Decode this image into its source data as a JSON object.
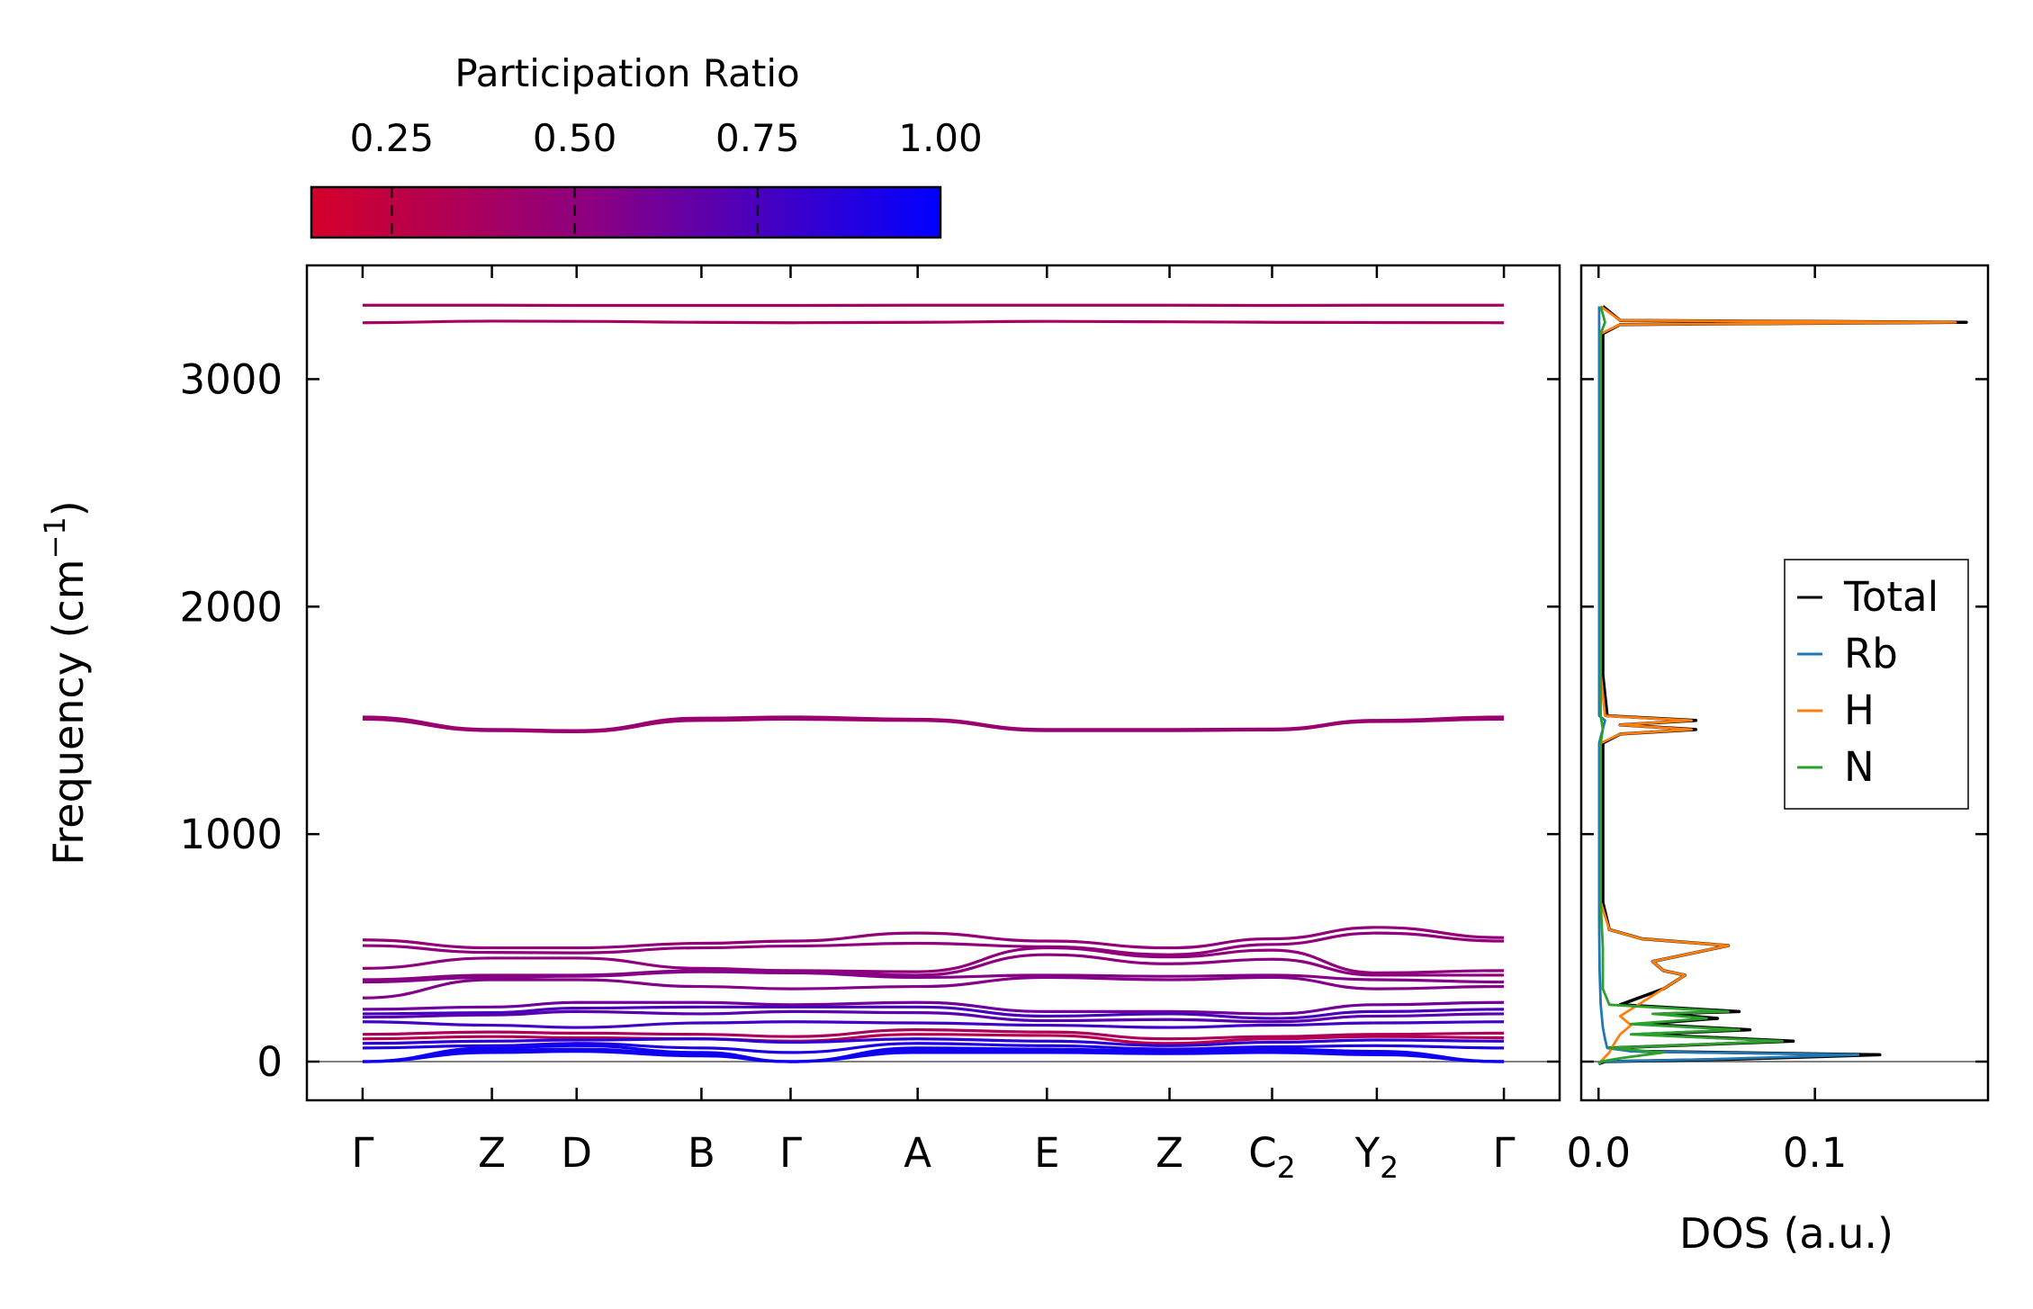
{
  "colors": {
    "low": "#d4002a",
    "mid": "#8b0082",
    "high": "#0000ff",
    "total": "#000000",
    "rb": "#1f77b4",
    "h": "#ff7f0e",
    "n": "#2ca02c",
    "zero_line": "#808080"
  },
  "colorbar": {
    "title": "Participation Ratio",
    "range": [
      0.14,
      1.0
    ],
    "ticks": [
      {
        "value": 0.25,
        "label": "0.25"
      },
      {
        "value": 0.5,
        "label": "0.50"
      },
      {
        "value": 0.75,
        "label": "0.75"
      },
      {
        "value": 1.0,
        "label": "1.00"
      }
    ]
  },
  "chart_data": [
    {
      "type": "line",
      "name": "phonon-band-structure",
      "ylabel": "Frequency (cm",
      "ylabel_sup": "−1",
      "ylabel_close": ")",
      "ylim": [
        -170,
        3500
      ],
      "yticks": [
        {
          "value": 0,
          "label": "0"
        },
        {
          "value": 1000,
          "label": "1000"
        },
        {
          "value": 2000,
          "label": "2000"
        },
        {
          "value": 3000,
          "label": "3000"
        }
      ],
      "kpath": [
        {
          "pos": 0.0,
          "label": "Γ",
          "sub": ""
        },
        {
          "pos": 0.58,
          "label": "Z",
          "sub": ""
        },
        {
          "pos": 0.96,
          "label": "D",
          "sub": ""
        },
        {
          "pos": 1.52,
          "label": "B",
          "sub": ""
        },
        {
          "pos": 1.92,
          "label": "Γ",
          "sub": ""
        },
        {
          "pos": 2.49,
          "label": "A",
          "sub": ""
        },
        {
          "pos": 3.07,
          "label": "E",
          "sub": ""
        },
        {
          "pos": 3.62,
          "label": "Z",
          "sub": ""
        },
        {
          "pos": 4.08,
          "label": "C",
          "sub": "2"
        },
        {
          "pos": 4.55,
          "label": "Y",
          "sub": "2"
        },
        {
          "pos": 5.12,
          "label": "Γ",
          "sub": ""
        }
      ],
      "xlim": [
        -0.25,
        5.37
      ],
      "series": [
        {
          "name": "band-1",
          "pr": 0.4,
          "values": [
            3325,
            3325,
            3324,
            3324,
            3324,
            3325,
            3325,
            3325,
            3324,
            3325,
            3325
          ]
        },
        {
          "name": "band-2",
          "pr": 0.38,
          "values": [
            3248,
            3255,
            3254,
            3250,
            3248,
            3250,
            3254,
            3252,
            3250,
            3249,
            3248
          ]
        },
        {
          "name": "band-3",
          "pr": 0.45,
          "values": [
            1515,
            1460,
            1455,
            1510,
            1515,
            1505,
            1460,
            1460,
            1462,
            1500,
            1515
          ]
        },
        {
          "name": "band-4",
          "pr": 0.45,
          "values": [
            1505,
            1455,
            1450,
            1500,
            1505,
            1500,
            1455,
            1455,
            1458,
            1495,
            1505
          ]
        },
        {
          "name": "band-5",
          "pr": 0.48,
          "values": [
            535,
            500,
            500,
            520,
            530,
            565,
            530,
            500,
            540,
            590,
            545
          ]
        },
        {
          "name": "band-6",
          "pr": 0.5,
          "values": [
            510,
            480,
            478,
            500,
            508,
            520,
            505,
            470,
            515,
            565,
            530
          ]
        },
        {
          "name": "band-7",
          "pr": 0.5,
          "values": [
            410,
            455,
            455,
            410,
            400,
            395,
            500,
            460,
            490,
            390,
            400
          ]
        },
        {
          "name": "band-8",
          "pr": 0.52,
          "values": [
            360,
            380,
            380,
            400,
            395,
            380,
            470,
            430,
            450,
            380,
            380
          ]
        },
        {
          "name": "band-9",
          "pr": 0.55,
          "values": [
            350,
            370,
            375,
            395,
            390,
            370,
            380,
            375,
            380,
            360,
            350
          ]
        },
        {
          "name": "band-10",
          "pr": 0.55,
          "values": [
            280,
            360,
            360,
            330,
            320,
            330,
            370,
            360,
            370,
            320,
            330
          ]
        },
        {
          "name": "band-11",
          "pr": 0.62,
          "values": [
            230,
            240,
            260,
            260,
            250,
            260,
            220,
            220,
            210,
            250,
            260
          ]
        },
        {
          "name": "band-12",
          "pr": 0.75,
          "values": [
            210,
            215,
            235,
            240,
            240,
            240,
            200,
            210,
            190,
            220,
            230
          ]
        },
        {
          "name": "band-13",
          "pr": 0.7,
          "values": [
            195,
            205,
            220,
            210,
            220,
            215,
            180,
            185,
            175,
            200,
            210
          ]
        },
        {
          "name": "band-14",
          "pr": 0.78,
          "values": [
            175,
            160,
            150,
            170,
            175,
            170,
            160,
            150,
            160,
            170,
            175
          ]
        },
        {
          "name": "band-15",
          "pr": 0.35,
          "values": [
            120,
            130,
            125,
            120,
            110,
            140,
            130,
            100,
            110,
            120,
            125
          ]
        },
        {
          "name": "band-16",
          "pr": 0.3,
          "values": [
            100,
            110,
            105,
            100,
            90,
            120,
            115,
            80,
            100,
            110,
            105
          ]
        },
        {
          "name": "band-17",
          "pr": 0.85,
          "values": [
            80,
            90,
            95,
            100,
            85,
            100,
            90,
            70,
            85,
            95,
            90
          ]
        },
        {
          "name": "band-18",
          "pr": 0.9,
          "values": [
            60,
            70,
            80,
            60,
            40,
            80,
            70,
            55,
            65,
            70,
            60
          ]
        },
        {
          "name": "band-19",
          "pr": 0.95,
          "values": [
            0,
            60,
            70,
            40,
            0,
            60,
            55,
            45,
            55,
            45,
            0
          ]
        },
        {
          "name": "band-20",
          "pr": 0.95,
          "values": [
            0,
            50,
            55,
            30,
            0,
            50,
            45,
            40,
            45,
            35,
            0
          ]
        },
        {
          "name": "band-21",
          "pr": 0.95,
          "values": [
            0,
            40,
            45,
            25,
            0,
            40,
            40,
            35,
            40,
            30,
            0
          ]
        }
      ]
    },
    {
      "type": "line",
      "name": "phonon-dos",
      "xlabel": "DOS (a.u.)",
      "xlim": [
        -0.008,
        0.18
      ],
      "xticks": [
        {
          "value": 0.0,
          "label": "0.0"
        },
        {
          "value": 0.1,
          "label": "0.1"
        }
      ],
      "legend_position": "center-right",
      "series": [
        {
          "name": "Total",
          "legend": "Total",
          "points": [
            [
              0,
              -10
            ],
            [
              0.003,
              0
            ],
            [
              0.06,
              10
            ],
            [
              0.13,
              30
            ],
            [
              0.02,
              45
            ],
            [
              0.005,
              60
            ],
            [
              0.09,
              90
            ],
            [
              0.02,
              120
            ],
            [
              0.07,
              140
            ],
            [
              0.02,
              165
            ],
            [
              0.055,
              190
            ],
            [
              0.03,
              210
            ],
            [
              0.065,
              220
            ],
            [
              0.01,
              250
            ],
            [
              0.03,
              320
            ],
            [
              0.04,
              380
            ],
            [
              0.03,
              400
            ],
            [
              0.025,
              440
            ],
            [
              0.06,
              510
            ],
            [
              0.02,
              540
            ],
            [
              0.005,
              580
            ],
            [
              0.002,
              700
            ],
            [
              0.002,
              1400
            ],
            [
              0.01,
              1440
            ],
            [
              0.045,
              1460
            ],
            [
              0.01,
              1480
            ],
            [
              0.045,
              1500
            ],
            [
              0.004,
              1520
            ],
            [
              0.002,
              1700
            ],
            [
              0.002,
              3200
            ],
            [
              0.01,
              3240
            ],
            [
              0.17,
              3250
            ],
            [
              0.01,
              3258
            ],
            [
              0.002,
              3320
            ]
          ]
        },
        {
          "name": "Rb",
          "legend": "Rb",
          "points": [
            [
              0,
              -10
            ],
            [
              0.002,
              0
            ],
            [
              0.05,
              10
            ],
            [
              0.12,
              30
            ],
            [
              0.015,
              45
            ],
            [
              0.004,
              60
            ],
            [
              0.003,
              100
            ],
            [
              0.002,
              150
            ],
            [
              0.001,
              250
            ],
            [
              0.0005,
              400
            ],
            [
              0.0003,
              600
            ],
            [
              0.0003,
              1400
            ],
            [
              0.003,
              1500
            ],
            [
              0.0003,
              1520
            ],
            [
              0.0003,
              3320
            ]
          ]
        },
        {
          "name": "H",
          "legend": "H",
          "points": [
            [
              0,
              -10
            ],
            [
              0.001,
              0
            ],
            [
              0.003,
              20
            ],
            [
              0.005,
              40
            ],
            [
              0.006,
              60
            ],
            [
              0.008,
              90
            ],
            [
              0.01,
              120
            ],
            [
              0.015,
              160
            ],
            [
              0.01,
              200
            ],
            [
              0.03,
              320
            ],
            [
              0.04,
              380
            ],
            [
              0.03,
              400
            ],
            [
              0.025,
              440
            ],
            [
              0.06,
              510
            ],
            [
              0.02,
              540
            ],
            [
              0.005,
              580
            ],
            [
              0.001,
              700
            ],
            [
              0.001,
              1400
            ],
            [
              0.01,
              1440
            ],
            [
              0.043,
              1460
            ],
            [
              0.01,
              1480
            ],
            [
              0.043,
              1500
            ],
            [
              0.003,
              1520
            ],
            [
              0.001,
              1700
            ],
            [
              0.001,
              3200
            ],
            [
              0.01,
              3240
            ],
            [
              0.165,
              3250
            ],
            [
              0.01,
              3258
            ],
            [
              0.001,
              3320
            ]
          ]
        },
        {
          "name": "N",
          "legend": "N",
          "points": [
            [
              0,
              -10
            ],
            [
              0.001,
              0
            ],
            [
              0.01,
              15
            ],
            [
              0.03,
              40
            ],
            [
              0.005,
              60
            ],
            [
              0.085,
              90
            ],
            [
              0.015,
              120
            ],
            [
              0.065,
              140
            ],
            [
              0.015,
              165
            ],
            [
              0.05,
              190
            ],
            [
              0.025,
              210
            ],
            [
              0.06,
              220
            ],
            [
              0.005,
              250
            ],
            [
              0.002,
              320
            ],
            [
              0.002,
              500
            ],
            [
              0.001,
              700
            ],
            [
              0.001,
              1400
            ],
            [
              0.002,
              1460
            ],
            [
              0.001,
              1520
            ],
            [
              0.001,
              3200
            ],
            [
              0.003,
              3250
            ],
            [
              0.001,
              3320
            ]
          ]
        }
      ]
    }
  ]
}
